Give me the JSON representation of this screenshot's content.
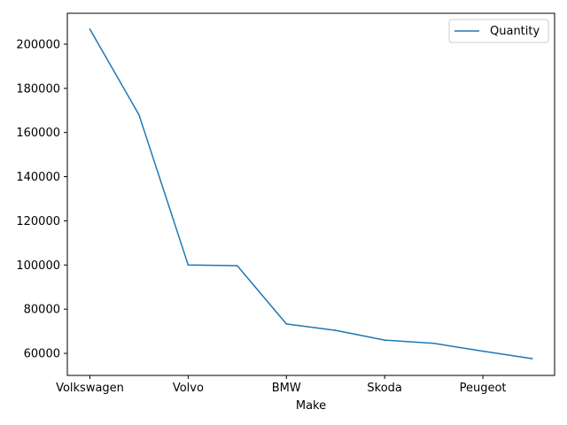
{
  "chart_data": {
    "type": "line",
    "x": [
      "Volkswagen",
      "",
      "Volvo",
      "",
      "BMW",
      "",
      "Skoda",
      "",
      "Peugeot",
      ""
    ],
    "xtick_labels": [
      "Volkswagen",
      "Volvo",
      "BMW",
      "Skoda",
      "Peugeot"
    ],
    "series": [
      {
        "name": "Quantity",
        "color": "#1f77b4",
        "values": [
          206800,
          168000,
          100000,
          99700,
          73300,
          70400,
          66000,
          64500,
          61000,
          57600
        ]
      }
    ],
    "yticks": [
      60000,
      80000,
      100000,
      120000,
      140000,
      160000,
      180000,
      200000
    ],
    "ylim": [
      50000,
      214000
    ],
    "xlabel": "Make",
    "ylabel": "",
    "title": "",
    "grid": false,
    "legend": "top-right"
  }
}
